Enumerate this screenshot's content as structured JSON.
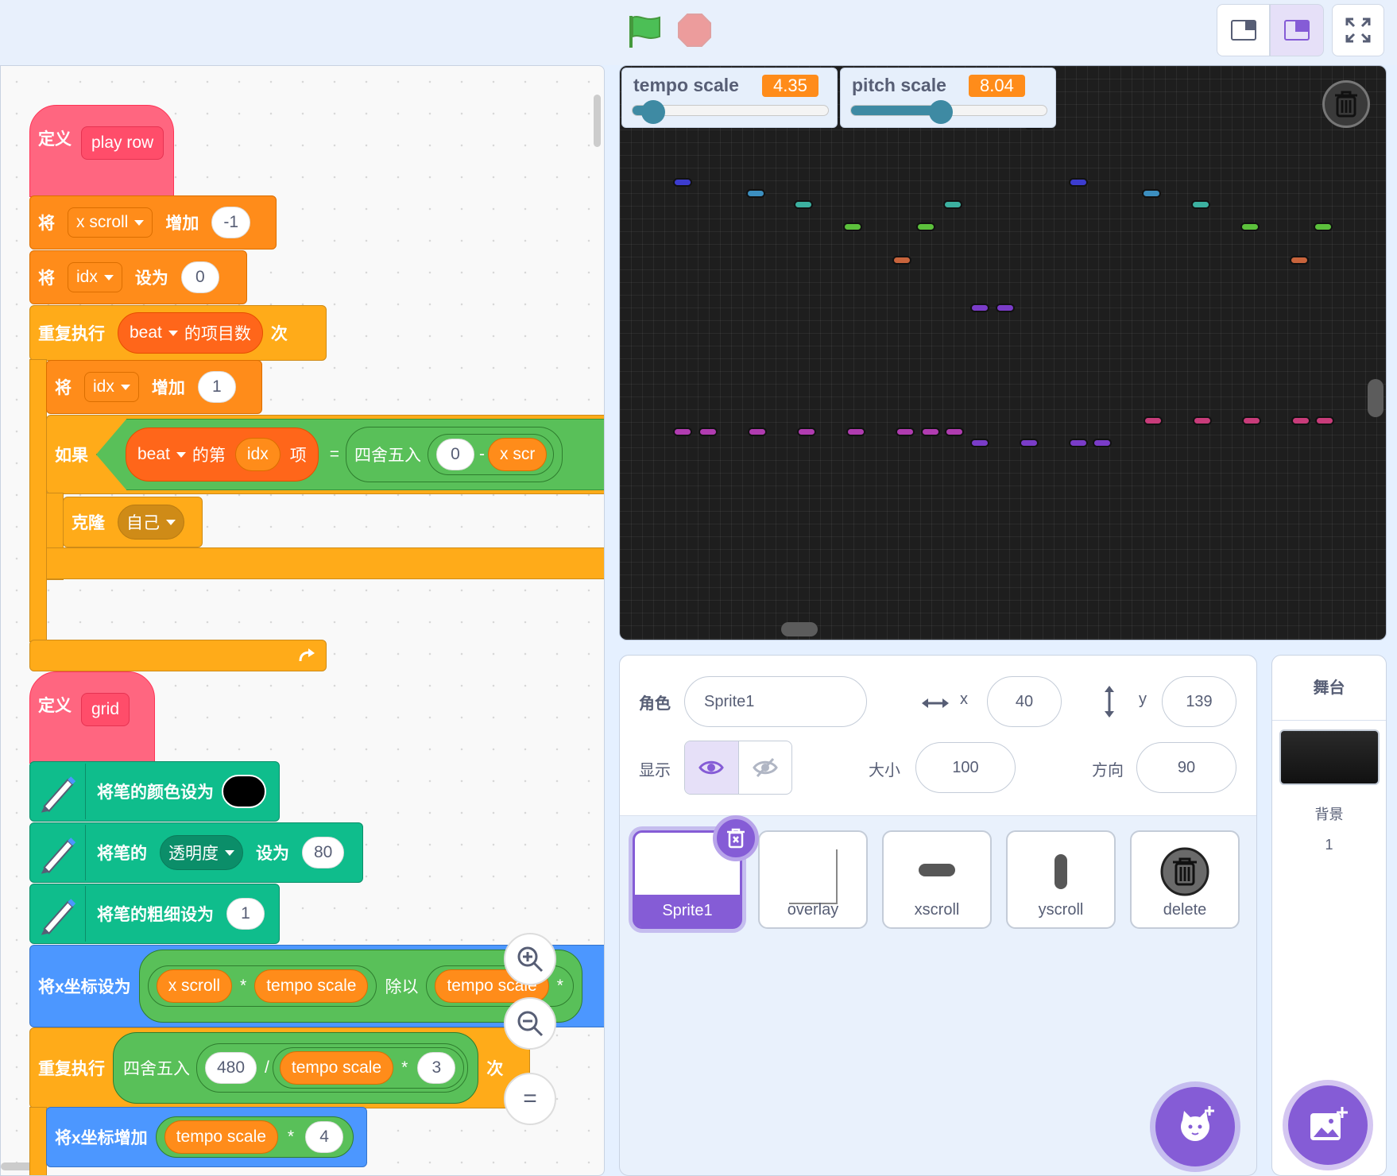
{
  "toolbar": {
    "green_flag": "green-flag-icon",
    "stop": "stop-icon"
  },
  "monitors": [
    {
      "label": "tempo scale",
      "value": "4.35",
      "level": 0.06
    },
    {
      "label": "pitch scale",
      "value": "8.04",
      "level": 0.41
    }
  ],
  "code": {
    "play_row": {
      "define": "定义",
      "name": "play row",
      "b1": {
        "verb": "将",
        "var": "x scroll",
        "op": "增加",
        "value": "-1"
      },
      "b2": {
        "verb": "将",
        "var": "idx",
        "op": "设为",
        "value": "0"
      },
      "repeat": {
        "label": "重复执行",
        "list": "beat",
        "of": "的项目数",
        "times": "次"
      },
      "b3": {
        "verb": "将",
        "var": "idx",
        "op": "增加",
        "value": "1"
      },
      "if": {
        "label": "如果",
        "list": "beat",
        "item_of": "的第",
        "idx": "idx",
        "item": "项",
        "eq": "=",
        "round": "四舍五入",
        "zero": "0",
        "minus": "-",
        "xs": "x scr"
      },
      "clone": {
        "label": "克隆",
        "target": "自己"
      }
    },
    "grid": {
      "define": "定义",
      "name": "grid",
      "pen1": {
        "label": "将笔的颜色设为"
      },
      "pen2": {
        "pre": "将笔的",
        "param": "透明度",
        "op": "设为",
        "value": "80"
      },
      "pen3": {
        "label": "将笔的粗细设为",
        "value": "1"
      },
      "setx": {
        "label": "将x坐标设为",
        "a": "x scroll",
        "mul": "*",
        "b": "tempo scale",
        "div": "除以",
        "c": "tempo scale",
        "mul2": "*"
      },
      "repeat": {
        "label": "重复执行",
        "round": "四舍五入",
        "n": "480",
        "slash": "/",
        "t": "tempo scale",
        "mul": "*",
        "three": "3",
        "times": "次"
      },
      "changex": {
        "label": "将x坐标增加",
        "t": "tempo scale",
        "mul": "*",
        "four": "4"
      }
    }
  },
  "sprite_info": {
    "sprite_label": "角色",
    "sprite_name": "Sprite1",
    "x_label": "x",
    "x": "40",
    "y_label": "y",
    "y": "139",
    "show_label": "显示",
    "size_label": "大小",
    "size": "100",
    "direction_label": "方向",
    "direction": "90"
  },
  "sprites": [
    {
      "name": "Sprite1",
      "selected": true
    },
    {
      "name": "overlay"
    },
    {
      "name": "xscroll"
    },
    {
      "name": "yscroll"
    },
    {
      "name": "delete"
    }
  ],
  "stage_panel": {
    "title": "舞台",
    "backdrop_label": "背景",
    "backdrop_count": "1"
  },
  "zoom": {
    "reset": "="
  }
}
